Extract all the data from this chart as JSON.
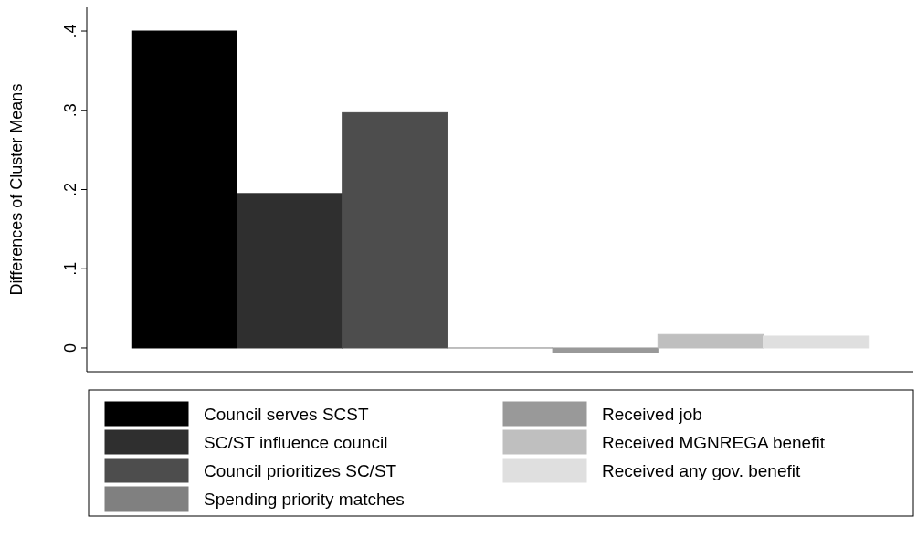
{
  "chart_data": {
    "type": "bar",
    "ylabel": "Differences of Cluster Means",
    "categories": [
      null
    ],
    "series": [
      {
        "name": "Council serves SCST",
        "color": "#000000",
        "values": [
          0.4
        ]
      },
      {
        "name": "SC/ST influence council",
        "color": "#2f2f2f",
        "values": [
          0.195
        ]
      },
      {
        "name": "Council prioritizes SC/ST",
        "color": "#4d4d4d",
        "values": [
          0.297
        ]
      },
      {
        "name": "Spending priority matches",
        "color": "#808080",
        "values": [
          0.0
        ]
      },
      {
        "name": "Received job",
        "color": "#999999",
        "values": [
          -0.006
        ]
      },
      {
        "name": "Received MGNREGA benefit",
        "color": "#bfbfbf",
        "values": [
          0.017
        ]
      },
      {
        "name": "Received any gov. benefit",
        "color": "#dfdfdf",
        "values": [
          0.015
        ]
      }
    ],
    "ylim": [
      -0.03,
      0.43
    ],
    "yticks": [
      {
        "value": 0,
        "label": "0"
      },
      {
        "value": 0.1,
        "label": ".1"
      },
      {
        "value": 0.2,
        "label": ".2"
      },
      {
        "value": 0.3,
        "label": ".3"
      },
      {
        "value": 0.4,
        "label": ".4"
      }
    ],
    "legend": "bottom"
  }
}
